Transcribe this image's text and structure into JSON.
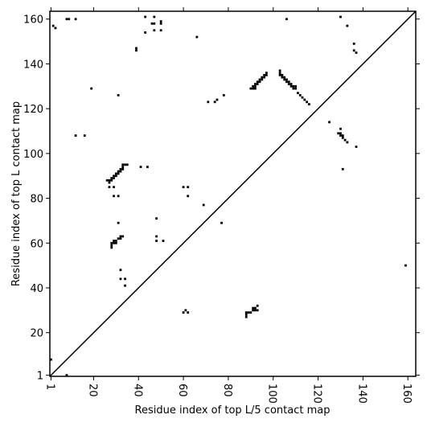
{
  "chart_data": {
    "type": "scatter",
    "x_label": "Residue index of top L/5 contact map",
    "y_label": "Residue index of top L contact map",
    "color": "#000000",
    "xlim": [
      0.5,
      163.5
    ],
    "ylim": [
      0.5,
      163.5
    ],
    "xticks": [
      1,
      20,
      40,
      60,
      80,
      100,
      120,
      140,
      160
    ],
    "yticks": [
      1,
      20,
      40,
      60,
      80,
      100,
      120,
      140,
      160
    ],
    "x": [
      2,
      3,
      8,
      9,
      12,
      43,
      47,
      46,
      47,
      50,
      50,
      43,
      47,
      50,
      66,
      39,
      39,
      19,
      31,
      12,
      16,
      106,
      130,
      133,
      136,
      136,
      137,
      90,
      91,
      92,
      91,
      92,
      92,
      93,
      93,
      94,
      94,
      95,
      95,
      96,
      96,
      97,
      97,
      103,
      103,
      103,
      104,
      104,
      105,
      105,
      106,
      106,
      107,
      107,
      108,
      108,
      109,
      109,
      110,
      110,
      111,
      112,
      113,
      114,
      115,
      116,
      125,
      130,
      129,
      130,
      130,
      131,
      131,
      132,
      133,
      137,
      131,
      71,
      74,
      75,
      78,
      26,
      27,
      27,
      28,
      28,
      29,
      29,
      30,
      30,
      31,
      31,
      32,
      32,
      33,
      33,
      34,
      35,
      33,
      41,
      44,
      27,
      29,
      29,
      31,
      60,
      62,
      62,
      69,
      48,
      31,
      77,
      28,
      28,
      29,
      29,
      30,
      30,
      31,
      32,
      32,
      33,
      28,
      48,
      48,
      51,
      32,
      32,
      34,
      34,
      1,
      8,
      60,
      61,
      62,
      88,
      88,
      89,
      90,
      88,
      91,
      91,
      92,
      92,
      93,
      93,
      159
    ],
    "values": [
      157,
      156,
      160,
      160,
      160,
      161,
      161,
      158,
      158,
      159,
      158,
      154,
      155,
      155,
      152,
      147,
      146,
      129,
      126,
      108,
      108,
      160,
      161,
      157,
      149,
      146,
      145,
      129,
      129,
      129,
      130,
      130,
      131,
      131,
      132,
      132,
      133,
      133,
      134,
      134,
      135,
      135,
      136,
      137,
      136,
      135,
      135,
      134,
      134,
      133,
      133,
      132,
      132,
      131,
      131,
      130,
      130,
      129,
      129,
      130,
      127,
      126,
      125,
      124,
      123,
      122,
      114,
      111,
      109,
      109,
      108,
      108,
      107,
      106,
      105,
      103,
      93,
      123,
      123,
      124,
      126,
      88,
      88,
      87,
      89,
      88,
      90,
      89,
      91,
      90,
      92,
      91,
      93,
      92,
      94,
      93,
      95,
      95,
      95,
      94,
      94,
      85,
      85,
      81,
      81,
      85,
      85,
      81,
      77,
      71,
      69,
      69,
      60,
      59,
      60,
      61,
      61,
      60,
      62,
      62,
      63,
      63,
      58,
      63,
      61,
      61,
      48,
      44,
      44,
      41,
      8,
      1,
      29,
      30,
      29,
      28,
      29,
      29,
      29,
      27,
      30,
      31,
      30,
      31,
      32,
      30,
      50
    ]
  }
}
